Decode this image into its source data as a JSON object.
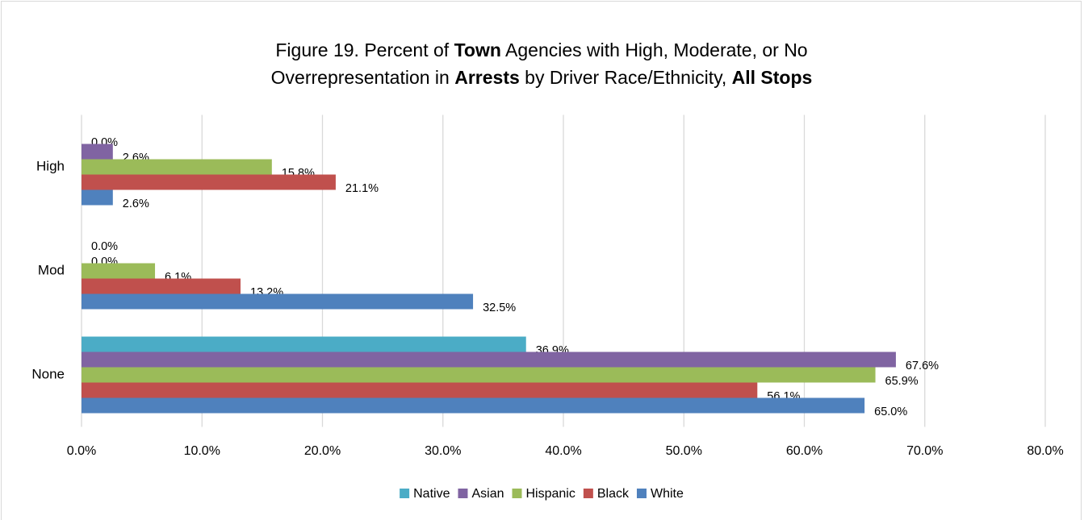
{
  "chart_data": {
    "type": "bar",
    "orientation": "horizontal",
    "title_lines": [
      [
        {
          "text": "Figure 19. Percent of ",
          "bold": false
        },
        {
          "text": "Town",
          "bold": true
        },
        {
          "text": " Agencies with High, Moderate, or No",
          "bold": false
        }
      ],
      [
        {
          "text": "Overrepresentation in ",
          "bold": false
        },
        {
          "text": "Arrests",
          "bold": true
        },
        {
          "text": " by Driver Race/Ethnicity, ",
          "bold": false
        },
        {
          "text": "All Stops",
          "bold": true
        }
      ]
    ],
    "categories": [
      "High",
      "Mod",
      "None"
    ],
    "series": [
      {
        "name": "Native",
        "color": "#4bacc6",
        "values": [
          0.0,
          0.0,
          36.9
        ],
        "value_labels": [
          "0.0%",
          "0.0%",
          "36.9%"
        ]
      },
      {
        "name": "Asian",
        "color": "#8064a2",
        "values": [
          2.6,
          0.0,
          67.6
        ],
        "value_labels": [
          "2.6%",
          "0.0%",
          "67.6%"
        ]
      },
      {
        "name": "Hispanic",
        "color": "#9bbb59",
        "values": [
          15.8,
          6.1,
          65.9
        ],
        "value_labels": [
          "15.8%",
          "6.1%",
          "65.9%"
        ]
      },
      {
        "name": "Black",
        "color": "#c0504d",
        "values": [
          21.1,
          13.2,
          56.1
        ],
        "value_labels": [
          "21.1%",
          "13.2%",
          "56.1%"
        ]
      },
      {
        "name": "White",
        "color": "#4f81bd",
        "values": [
          2.6,
          32.5,
          65.0
        ],
        "value_labels": [
          "2.6%",
          "32.5%",
          "65.0%"
        ]
      }
    ],
    "xlim": [
      0,
      80
    ],
    "xticks": [
      {
        "value": 0,
        "label": "0.0%"
      },
      {
        "value": 10,
        "label": "10.0%"
      },
      {
        "value": 20,
        "label": "20.0%"
      },
      {
        "value": 30,
        "label": "30.0%"
      },
      {
        "value": 40,
        "label": "40.0%"
      },
      {
        "value": 50,
        "label": "50.0%"
      },
      {
        "value": 60,
        "label": "60.0%"
      },
      {
        "value": 70,
        "label": "70.0%"
      },
      {
        "value": 80,
        "label": "80.0%"
      }
    ],
    "grid": true,
    "legend": "bottom"
  }
}
